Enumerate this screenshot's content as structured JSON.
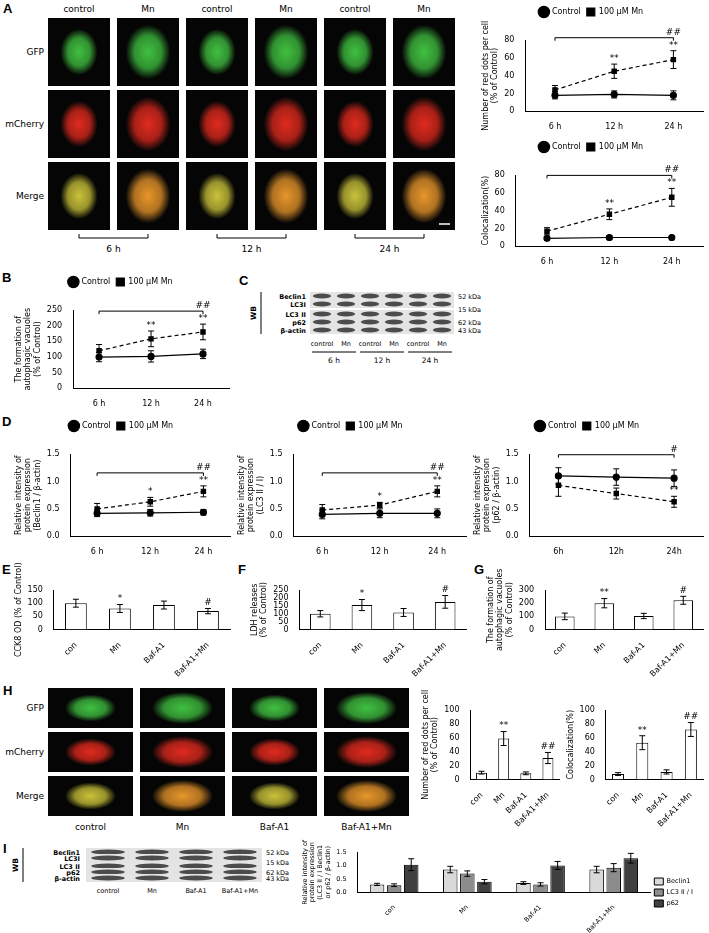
{
  "chart_data": [
    {
      "type": "line",
      "y_label": [
        "Number of red dots per cell",
        "(% of Control)"
      ],
      "categories": [
        "6 h",
        "12 h",
        "24 h"
      ],
      "series": [
        {
          "name": "Control",
          "color": "#000000",
          "marker": "circle",
          "line_style": "solid",
          "values": [
            18,
            19,
            18
          ],
          "errors": [
            4,
            4,
            5
          ]
        },
        {
          "name": "100 μM Mn",
          "color": "#000000",
          "marker": "square",
          "line_style": "dashed",
          "values": [
            24,
            45,
            58
          ],
          "errors": [
            5,
            8,
            10
          ]
        }
      ],
      "ylim": [
        0,
        80
      ],
      "yticks": [
        0,
        20,
        40,
        60,
        80
      ],
      "legend": "top",
      "annotations": [
        {
          "series": 1,
          "index": 1,
          "text": "**"
        },
        {
          "series": 1,
          "index": 2,
          "text": "**"
        },
        {
          "from": 0,
          "to": 2,
          "text": "##"
        }
      ]
    },
    {
      "type": "line",
      "y_label": "Colocalization(%)",
      "categories": [
        "6 h",
        "12 h",
        "24 h"
      ],
      "series": [
        {
          "name": "Control",
          "color": "#000000",
          "marker": "circle",
          "line_style": "solid",
          "values": [
            9,
            10,
            10
          ],
          "errors": [
            2,
            2,
            1
          ]
        },
        {
          "name": "100 μM Mn",
          "color": "#000000",
          "marker": "square",
          "line_style": "dashed",
          "values": [
            17,
            36,
            55
          ],
          "errors": [
            4,
            6,
            10
          ]
        }
      ],
      "ylim": [
        0,
        80
      ],
      "yticks": [
        0,
        20,
        40,
        60,
        80
      ],
      "legend": "top",
      "annotations": [
        {
          "series": 1,
          "index": 1,
          "text": "**"
        },
        {
          "series": 1,
          "index": 2,
          "text": "**"
        },
        {
          "from": 0,
          "to": 2,
          "text": "##"
        }
      ]
    },
    {
      "type": "line",
      "panel": "B",
      "y_label": [
        "The formation of",
        "autophagic vacuoles",
        "(% of Control)"
      ],
      "categories": [
        "6 h",
        "12 h",
        "24 h"
      ],
      "series": [
        {
          "name": "Control",
          "color": "#000000",
          "marker": "circle",
          "line_style": "solid",
          "values": [
            100,
            102,
            110
          ],
          "errors": [
            15,
            18,
            15
          ]
        },
        {
          "name": "100 μM Mn",
          "color": "#000000",
          "marker": "square",
          "line_style": "dashed",
          "values": [
            120,
            158,
            180
          ],
          "errors": [
            20,
            25,
            25
          ]
        }
      ],
      "ylim": [
        0,
        250
      ],
      "yticks": [
        0,
        50,
        100,
        150,
        200,
        250
      ],
      "legend": "top",
      "annotations": [
        {
          "series": 1,
          "index": 1,
          "text": "**"
        },
        {
          "series": 1,
          "index": 2,
          "text": "**"
        },
        {
          "from": 0,
          "to": 2,
          "text": "##"
        }
      ]
    },
    {
      "type": "line",
      "panel": "D",
      "y_label": [
        "Relative intensity of",
        "protein expression",
        "(Beclin1 / β-actin)"
      ],
      "categories": [
        "6 h",
        "12 h",
        "24 h"
      ],
      "series": [
        {
          "name": "Control",
          "color": "#000000",
          "marker": "circle",
          "line_style": "solid",
          "values": [
            0.42,
            0.43,
            0.44
          ],
          "errors": [
            0.06,
            0.06,
            0.05
          ]
        },
        {
          "name": "100 μM Mn",
          "color": "#000000",
          "marker": "square",
          "line_style": "dashed",
          "values": [
            0.5,
            0.63,
            0.82
          ],
          "errors": [
            0.1,
            0.08,
            0.1
          ]
        }
      ],
      "ylim": [
        0,
        1.5
      ],
      "yticks": [
        {
          "value": 0,
          "label": "0.0"
        },
        {
          "value": 0.5,
          "label": "0.5"
        },
        {
          "value": 1,
          "label": "1.0"
        },
        {
          "value": 1.5,
          "label": "1.5"
        }
      ],
      "legend": "top",
      "annotations": [
        {
          "series": 1,
          "index": 1,
          "text": "*"
        },
        {
          "series": 1,
          "index": 2,
          "text": "**"
        },
        {
          "from": 0,
          "to": 2,
          "text": "##"
        }
      ]
    },
    {
      "type": "line",
      "y_label": [
        "Relative intensity of",
        "protein expression",
        "(LC3 II / I)"
      ],
      "categories": [
        "6 h",
        "12 h",
        "24 h"
      ],
      "series": [
        {
          "name": "Control",
          "color": "#000000",
          "marker": "circle",
          "line_style": "solid",
          "values": [
            0.4,
            0.42,
            0.42
          ],
          "errors": [
            0.08,
            0.08,
            0.08
          ]
        },
        {
          "name": "100 μM Mn",
          "color": "#000000",
          "marker": "square",
          "line_style": "dashed",
          "values": [
            0.48,
            0.57,
            0.82
          ],
          "errors": [
            0.1,
            0.05,
            0.1
          ]
        }
      ],
      "ylim": [
        0,
        1.5
      ],
      "yticks": [
        {
          "value": 0,
          "label": "0.0"
        },
        {
          "value": 0.5,
          "label": "0.5"
        },
        {
          "value": 1,
          "label": "1.0"
        },
        {
          "value": 1.5,
          "label": "1.5"
        }
      ],
      "legend": "top",
      "annotations": [
        {
          "series": 1,
          "index": 1,
          "text": "*"
        },
        {
          "series": 1,
          "index": 2,
          "text": "**"
        },
        {
          "from": 0,
          "to": 2,
          "text": "##"
        }
      ]
    },
    {
      "type": "line",
      "y_label": [
        "Relative intensity of",
        "protein expression",
        "(p62 / β-actin)"
      ],
      "categories": [
        "6h",
        "12h",
        "24h"
      ],
      "series": [
        {
          "name": "Control",
          "color": "#000000",
          "marker": "circle",
          "line_style": "solid",
          "values": [
            1.1,
            1.08,
            1.06
          ],
          "errors": [
            0.15,
            0.15,
            0.15
          ]
        },
        {
          "name": "100 μM Mn",
          "color": "#000000",
          "marker": "square",
          "line_style": "dashed",
          "values": [
            0.93,
            0.78,
            0.63
          ],
          "errors": [
            0.2,
            0.1,
            0.1
          ]
        }
      ],
      "ylim": [
        0,
        1.5
      ],
      "yticks": [
        {
          "value": 0,
          "label": "0.0"
        },
        {
          "value": 0.5,
          "label": "0.5"
        },
        {
          "value": 1,
          "label": "1.0"
        },
        {
          "value": 1.5,
          "label": "1.5"
        }
      ],
      "legend": "top",
      "annotations": [
        {
          "series": 1,
          "index": 1,
          "text": "*"
        },
        {
          "series": 1,
          "index": 2,
          "text": "**"
        },
        {
          "from": 0,
          "to": 2,
          "text": "#"
        }
      ]
    },
    {
      "type": "bar",
      "panel": "E",
      "y_label": "CCK8 OD (% of Control)",
      "categories": [
        "con",
        "Mn",
        "Baf-A1",
        "Baf-A1+Mn"
      ],
      "values": [
        100,
        80,
        93,
        70
      ],
      "errors": [
        15,
        15,
        15,
        10
      ],
      "color": "#ffffff",
      "ylim": [
        0,
        150
      ],
      "yticks": [
        0,
        50,
        100,
        150
      ],
      "annotations": [
        {
          "index": 1,
          "text": "*"
        },
        {
          "index": 3,
          "text": "#"
        }
      ]
    },
    {
      "type": "bar",
      "panel": "F",
      "y_label": [
        "LDH releases",
        "(% of Control)"
      ],
      "categories": [
        "con",
        "Mn",
        "Baf-A1",
        "Baf-A1+Mn"
      ],
      "values": [
        100,
        155,
        108,
        175
      ],
      "errors": [
        20,
        35,
        25,
        40
      ],
      "color": "#ffffff",
      "ylim": [
        0,
        250
      ],
      "yticks": [
        0,
        50,
        100,
        150,
        200,
        250
      ],
      "annotations": [
        {
          "index": 1,
          "text": "*"
        },
        {
          "index": 3,
          "text": "#"
        }
      ]
    },
    {
      "type": "bar",
      "panel": "G",
      "y_label": [
        "The formation of",
        "autophagic vacuoles",
        "(% of Control)"
      ],
      "categories": [
        "con",
        "Mn",
        "Baf-A1",
        "Baf-A1+Mn"
      ],
      "values": [
        100,
        200,
        103,
        222
      ],
      "errors": [
        25,
        35,
        20,
        30
      ],
      "color": "#ffffff",
      "ylim": [
        0,
        300
      ],
      "yticks": [
        0,
        100,
        200,
        300
      ],
      "annotations": [
        {
          "index": 1,
          "text": "**"
        },
        {
          "index": 3,
          "text": "#"
        }
      ]
    },
    {
      "type": "bar",
      "y_label": [
        "Number of red dots per cell",
        "(% of Control)"
      ],
      "categories": [
        "con",
        "Mn",
        "Baf-A1",
        "Baf-A1+Mn"
      ],
      "values": [
        10,
        59,
        9,
        31
      ],
      "errors": [
        2,
        10,
        2,
        8
      ],
      "color": "#ffffff",
      "ylim": [
        0,
        100
      ],
      "yticks": [
        0,
        20,
        40,
        60,
        80,
        100
      ],
      "annotations": [
        {
          "index": 1,
          "text": "**"
        },
        {
          "index": 3,
          "text": "##"
        }
      ]
    },
    {
      "type": "bar",
      "y_label": "Colocalization(%)",
      "categories": [
        "con",
        "Mn",
        "Baf-A1",
        "Baf-A1+Mn"
      ],
      "values": [
        8,
        53,
        11,
        72
      ],
      "errors": [
        2,
        10,
        3,
        10
      ],
      "color": "#ffffff",
      "ylim": [
        0,
        100
      ],
      "yticks": [
        0,
        20,
        40,
        60,
        80,
        100
      ],
      "annotations": [
        {
          "index": 1,
          "text": "**"
        },
        {
          "index": 3,
          "text": "##"
        }
      ]
    },
    {
      "type": "bar",
      "y_label": [
        "Relative intensity of",
        "protein expression",
        "(LC3 II / I Beclin1",
        "or p62 / β-actin)"
      ],
      "categories": [
        "con",
        "Mn",
        "Baf-A1",
        "Baf-A1+Mn"
      ],
      "series": [
        {
          "name": "Beclin1",
          "color": "#d9d9d9",
          "values": [
            0.3,
            0.85,
            0.35,
            0.85
          ],
          "errors": [
            0.04,
            0.12,
            0.05,
            0.12
          ]
        },
        {
          "name": "LC3 II / I",
          "color": "#8c8c8c",
          "values": [
            0.27,
            0.7,
            0.3,
            0.92
          ],
          "errors": [
            0.05,
            0.1,
            0.06,
            0.15
          ]
        },
        {
          "name": "p62",
          "color": "#404040",
          "values": [
            1.03,
            0.4,
            1.0,
            1.27
          ],
          "errors": [
            0.22,
            0.08,
            0.15,
            0.18
          ]
        }
      ],
      "ylim": [
        0,
        1.5
      ],
      "yticks": [
        {
          "value": 0,
          "label": "0.0"
        },
        {
          "value": 0.5,
          "label": "0.5"
        },
        {
          "value": 1,
          "label": "1.0"
        },
        {
          "value": 1.5,
          "label": "1.5"
        }
      ],
      "legend": "right"
    }
  ],
  "image_panels": [
    {
      "label": "A",
      "rows": [
        "GFP",
        "mCherry",
        "Merge"
      ],
      "columns": [
        "control",
        "Mn",
        "control",
        "Mn",
        "control",
        "Mn"
      ],
      "groups": [
        "6 h",
        "12 h",
        "24 h"
      ]
    },
    {
      "label": "H",
      "rows": [
        "GFP",
        "mCherry",
        "Merge"
      ],
      "columns": [
        "control",
        "Mn",
        "Baf-A1",
        "Baf-A1+Mn"
      ]
    }
  ],
  "blots": [
    {
      "label": "C",
      "method": "WB",
      "bands": [
        {
          "names": [
            "Beclin1"
          ],
          "size": "52 kDa"
        },
        {
          "names": [
            "LC3I",
            "LC3 II"
          ],
          "size": "15 kDa"
        },
        {
          "names": [
            "p62"
          ],
          "size": "62 kDa"
        },
        {
          "names": [
            "β-actin"
          ],
          "size": "43 kDa"
        }
      ],
      "lanes": [
        "control",
        "Mn",
        "control",
        "Mn",
        "control",
        "Mn"
      ],
      "groups": [
        "6 h",
        "12 h",
        "24 h"
      ]
    },
    {
      "label": "I",
      "method": "WB",
      "bands": [
        {
          "names": [
            "Beclin1"
          ],
          "size": "52 kDa"
        },
        {
          "names": [
            "LC3I",
            "LC3 II"
          ],
          "size": "15 kDa"
        },
        {
          "names": [
            "p62"
          ],
          "size": "62 kDa"
        },
        {
          "names": [
            "β-actin"
          ],
          "size": "43 kDa"
        }
      ],
      "lanes": [
        "control",
        "Mn",
        "Baf-A1",
        "Baf-A1+Mn"
      ]
    }
  ]
}
